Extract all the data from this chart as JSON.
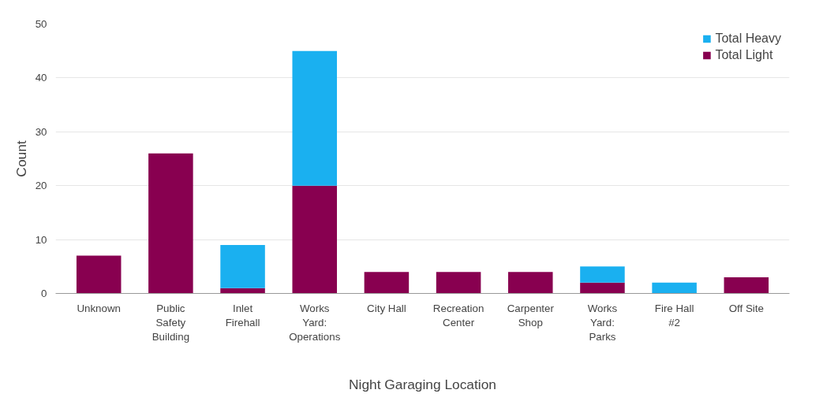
{
  "chart_data": {
    "type": "bar",
    "stacked": true,
    "xlabel": "Night Garaging Location",
    "ylabel": "Count",
    "categories": [
      "Unknown",
      "Public Safety Building",
      "Inlet Firehall",
      "Works Yard: Operations",
      "City Hall",
      "Recreation Center",
      "Carpenter Shop",
      "Works Yard: Parks",
      "Fire Hall #2",
      "Off Site"
    ],
    "series": [
      {
        "name": "Total Light",
        "color": "#880050",
        "values": [
          7,
          26,
          1,
          20,
          4,
          4,
          4,
          2,
          0,
          3
        ]
      },
      {
        "name": "Total Heavy",
        "color": "#1ab0f0",
        "values": [
          0,
          0,
          8,
          25,
          0,
          0,
          0,
          3,
          2,
          0
        ]
      }
    ],
    "ylim": [
      0,
      50
    ],
    "yticks": [
      0,
      10,
      20,
      30,
      40,
      50
    ],
    "grid": "y",
    "legend": "top right"
  }
}
